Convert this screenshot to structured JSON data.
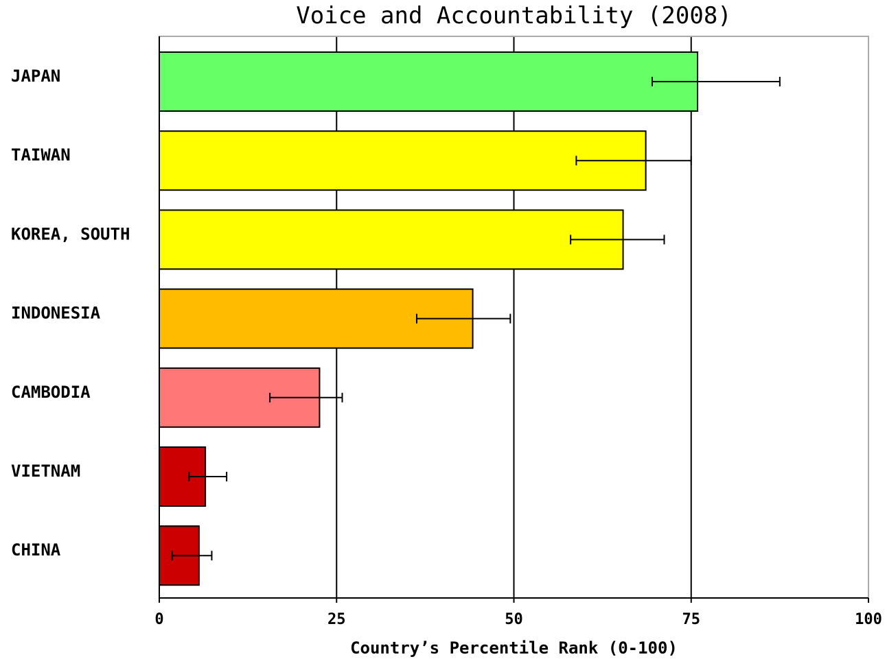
{
  "chart_data": {
    "type": "bar",
    "orientation": "horizontal",
    "title": "Voice and Accountability (2008)",
    "xlabel": "Country’s Percentile Rank (0-100)",
    "ylabel": "",
    "xlim": [
      0,
      100
    ],
    "xticks": [
      0,
      25,
      50,
      75,
      100
    ],
    "xtick_labels": [
      "0",
      "25",
      "50",
      "75",
      "100"
    ],
    "grid": "vertical",
    "categories": [
      "JAPAN",
      "TAIWAN",
      "KOREA, SOUTH",
      "INDONESIA",
      "CAMBODIA",
      "VIETNAM",
      "CHINA"
    ],
    "values": [
      75.9,
      68.6,
      65.4,
      44.2,
      22.6,
      6.5,
      5.6
    ],
    "error_low": [
      69.5,
      58.8,
      58.0,
      36.3,
      15.6,
      4.2,
      1.8
    ],
    "error_high": [
      87.5,
      75.0,
      71.2,
      49.5,
      25.8,
      9.5,
      7.4
    ],
    "colors": [
      "#66ff66",
      "#ffff00",
      "#ffff00",
      "#ffbb00",
      "#ff7777",
      "#cc0000",
      "#cc0000"
    ]
  }
}
